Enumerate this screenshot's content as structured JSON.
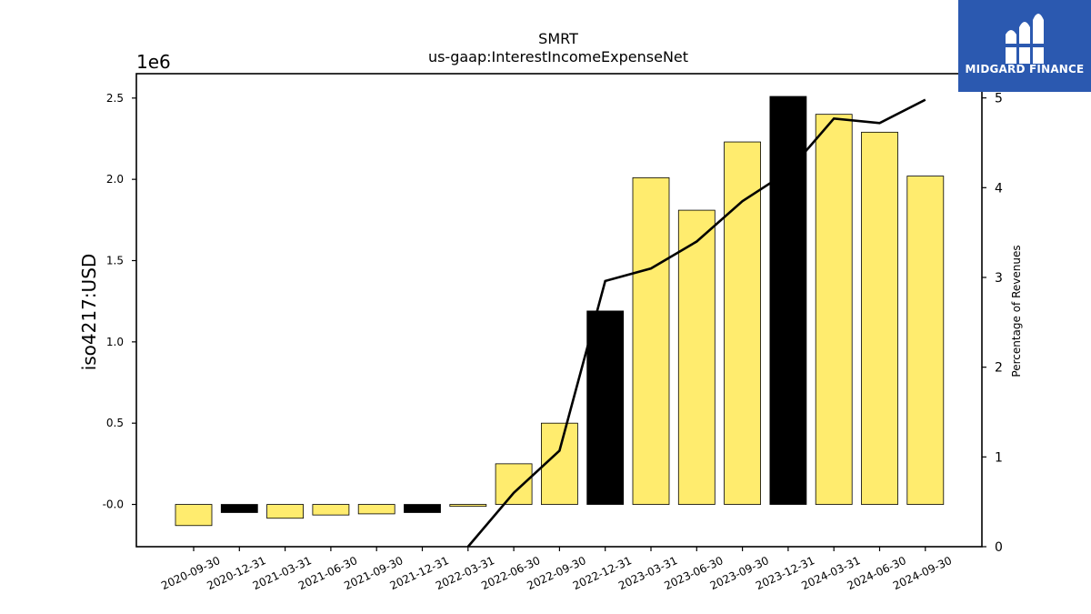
{
  "logo": {
    "text": "MIDGARD FINANCE"
  },
  "chart_data": {
    "type": "bar",
    "title": "SMRT",
    "subtitle": "us-gaap:InterestIncomeExpenseNet",
    "ylabel": "iso4217:USD",
    "y_offset_label": "1e6",
    "y2label": "Percentage of Revenues",
    "ylim": [
      -0.26,
      2.65
    ],
    "y2lim": [
      0,
      5.27
    ],
    "yticks": [
      "-0.0",
      "0.5",
      "1.0",
      "1.5",
      "2.0",
      "2.5"
    ],
    "y2ticks": [
      "0",
      "1",
      "2",
      "3",
      "4",
      "5"
    ],
    "grid": false,
    "categories": [
      "2020-09-30",
      "2020-12-31",
      "2021-03-31",
      "2021-06-30",
      "2021-09-30",
      "2021-12-31",
      "2022-03-31",
      "2022-06-30",
      "2022-09-30",
      "2022-12-31",
      "2023-03-31",
      "2023-06-30",
      "2023-09-30",
      "2023-12-31",
      "2024-03-31",
      "2024-06-30",
      "2024-09-30"
    ],
    "series": [
      {
        "type": "bar",
        "axis": "left",
        "unit_scale": "1e6",
        "values": [
          -0.13,
          -0.05,
          -0.085,
          -0.065,
          -0.058,
          -0.05,
          -0.012,
          0.25,
          0.5,
          1.19,
          2.01,
          1.81,
          2.23,
          2.51,
          2.4,
          2.29,
          2.02
        ],
        "highlight": [
          false,
          true,
          false,
          false,
          false,
          true,
          false,
          false,
          false,
          true,
          false,
          false,
          false,
          true,
          false,
          false,
          false
        ]
      },
      {
        "type": "line",
        "axis": "right",
        "values": [
          null,
          null,
          null,
          null,
          null,
          null,
          0.0,
          0.6,
          1.07,
          2.96,
          3.1,
          3.4,
          3.85,
          4.18,
          4.77,
          4.72,
          4.98
        ]
      }
    ],
    "colors": {
      "bar": "#ffec6e",
      "bar_highlight": "#000000",
      "bar_edge": "#000000",
      "line": "#000000"
    }
  }
}
